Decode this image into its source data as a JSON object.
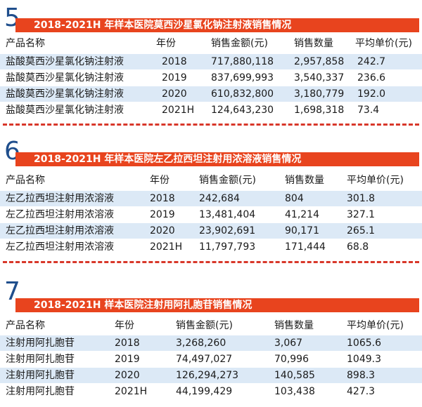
{
  "colors": {
    "header_bar": "#e8441e",
    "number": "#1f4e8c",
    "row_band": "#dce9f6",
    "divider": "#d8372a"
  },
  "sections": [
    {
      "number": "5",
      "title": "2018-2021H 年样本医院莫西沙星氯化钠注射液销售情况",
      "headers": [
        "产品名称",
        "年份",
        "销售金额(元)",
        "销售数量",
        "平均单价(元)"
      ],
      "rows": [
        [
          "盐酸莫西沙星氯化钠注射液",
          "2018",
          "717,880,118",
          "2,957,858",
          "242.7"
        ],
        [
          "盐酸莫西沙星氯化钠注射液",
          "2019",
          "837,699,993",
          "3,540,337",
          "236.6"
        ],
        [
          "盐酸莫西沙星氯化钠注射液",
          "2020",
          "610,832,800",
          "3,180,779",
          "192.0"
        ],
        [
          "盐酸莫西沙星氯化钠注射液",
          "2021H",
          "124,643,230",
          "1,698,318",
          "73.4"
        ]
      ]
    },
    {
      "number": "6",
      "title": "2018-2021H 年样本医院左乙拉西坦注射用浓溶液销售情况",
      "headers": [
        "产品名称",
        "年份",
        "销售金额(元)",
        "销售数量",
        "平均单价(元)"
      ],
      "rows": [
        [
          "左乙拉西坦注射用浓溶液",
          "2018",
          "242,684",
          "804",
          "301.8"
        ],
        [
          "左乙拉西坦注射用浓溶液",
          "2019",
          "13,481,404",
          "41,214",
          "327.1"
        ],
        [
          "左乙拉西坦注射用浓溶液",
          "2020",
          "23,902,691",
          "90,171",
          "265.1"
        ],
        [
          "左乙拉西坦注射用浓溶液",
          "2021H",
          "11,797,793",
          "171,444",
          "68.8"
        ]
      ]
    },
    {
      "number": "7",
      "title": "2018-2021H 样本医院注射用阿扎胞苷销售情况",
      "headers": [
        "产品名称",
        "年份",
        "销售金额(元)",
        "销售数量",
        "平均单价(元)"
      ],
      "rows": [
        [
          "注射用阿扎胞苷",
          "2018",
          "3,268,260",
          "3,067",
          "1065.6"
        ],
        [
          "注射用阿扎胞苷",
          "2019",
          "74,497,027",
          "70,996",
          "1049.3"
        ],
        [
          "注射用阿扎胞苷",
          "2020",
          "126,294,273",
          "140,585",
          "898.3"
        ],
        [
          "注射用阿扎胞苷",
          "2021H",
          "44,199,429",
          "103,438",
          "427.3"
        ]
      ]
    }
  ]
}
